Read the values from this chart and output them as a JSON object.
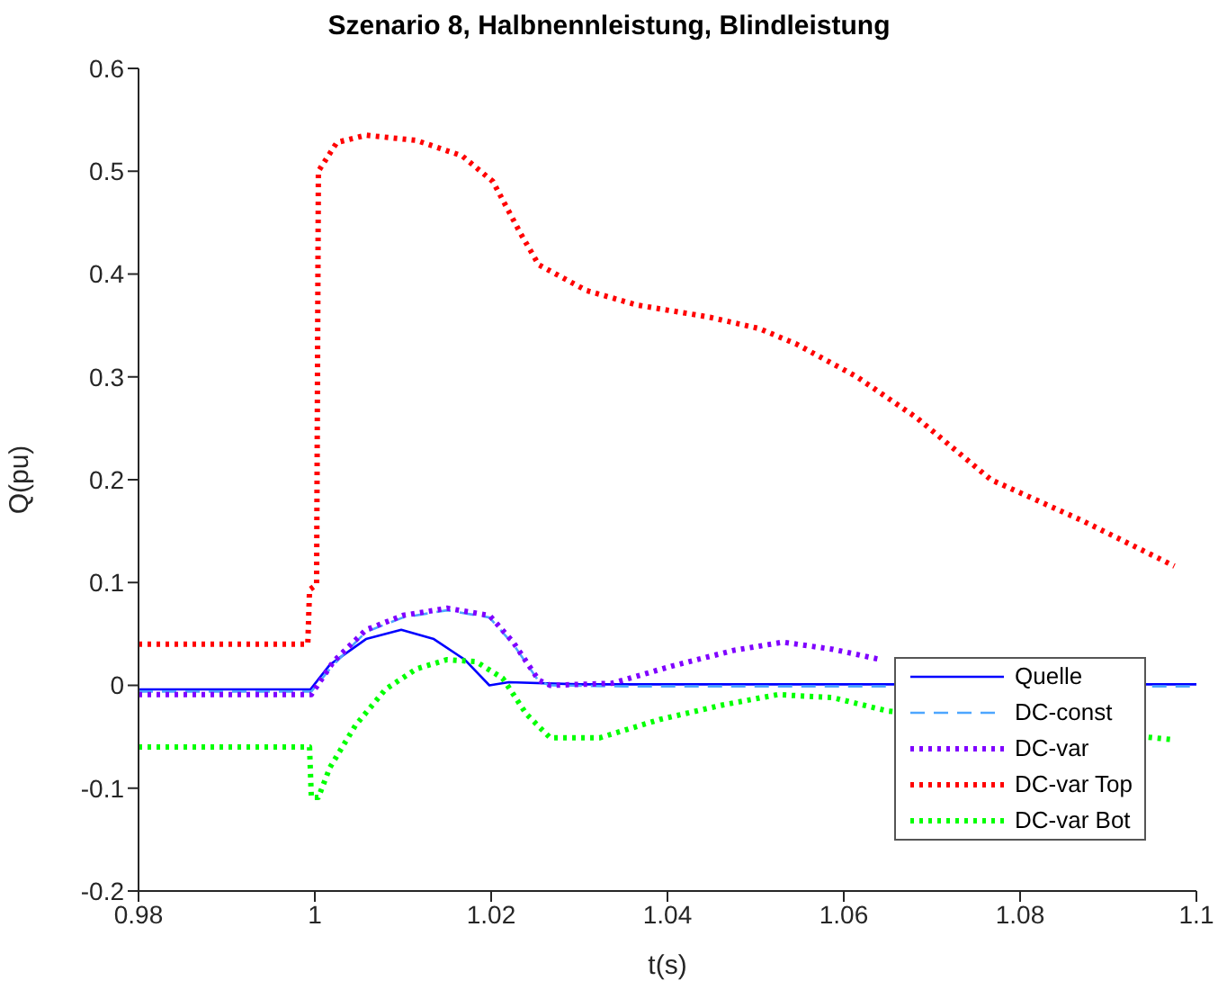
{
  "chart_data": {
    "type": "line",
    "title": "Szenario 8, Halbnennleistung, Blindleistung",
    "xlabel": "t(s)",
    "ylabel": "Q(pu)",
    "xlim": [
      0.98,
      1.1
    ],
    "xticks": [
      0.98,
      1,
      1.02,
      1.04,
      1.06,
      1.08,
      1.1
    ],
    "ylim": [
      -0.2,
      0.6
    ],
    "yticks": [
      -0.2,
      -0.1,
      0,
      0.1,
      0.2,
      0.3,
      0.4,
      0.5,
      0.6
    ],
    "legend": "bottom right",
    "series": [
      {
        "name": "Quelle",
        "color": "#0000ff",
        "line_style": "solid",
        "x": [
          0.98,
          0.9995,
          1.0017,
          1.0058,
          1.0098,
          1.0135,
          1.017,
          1.0198,
          1.022,
          1.03,
          1.1
        ],
        "values": [
          -0.004,
          -0.004,
          0.02,
          0.045,
          0.054,
          0.045,
          0.025,
          0.0,
          0.003,
          0.001,
          0.001
        ]
      },
      {
        "name": "DC-const",
        "color": "#4da6ff",
        "line_style": "dashed",
        "x": [
          0.98,
          0.9996,
          1.0021,
          1.0058,
          1.01,
          1.015,
          1.0198,
          1.0225,
          1.0254,
          1.0267,
          1.035,
          1.1
        ],
        "values": [
          -0.006,
          -0.006,
          0.02,
          0.052,
          0.066,
          0.073,
          0.066,
          0.04,
          0.004,
          0.0,
          -0.001,
          -0.001
        ]
      },
      {
        "name": "DC-var",
        "color": "#7f00ff",
        "line_style": "dotted",
        "x": [
          0.98,
          0.9996,
          1.0021,
          1.0058,
          1.01,
          1.015,
          1.0198,
          1.0225,
          1.0254,
          1.0267,
          1.0337,
          1.0406,
          1.0475,
          1.0531,
          1.0588,
          1.0642
        ],
        "values": [
          -0.009,
          -0.009,
          0.023,
          0.054,
          0.068,
          0.075,
          0.068,
          0.042,
          0.005,
          0.0,
          0.002,
          0.019,
          0.034,
          0.042,
          0.035,
          0.025
        ]
      },
      {
        "name": "DC-var Top",
        "color": "#ff0000",
        "line_style": "dotted",
        "x": [
          0.98,
          0.9992,
          0.9994,
          1.0002,
          1.0004,
          1.0025,
          1.0058,
          1.0115,
          1.0167,
          1.0202,
          1.0233,
          1.0254,
          1.0308,
          1.0365,
          1.0448,
          1.0504,
          1.0546,
          1.0615,
          1.0683,
          1.0767,
          1.0871,
          1.0975
        ],
        "values": [
          0.04,
          0.04,
          0.093,
          0.098,
          0.5,
          0.528,
          0.535,
          0.53,
          0.515,
          0.49,
          0.44,
          0.409,
          0.384,
          0.37,
          0.358,
          0.347,
          0.332,
          0.3,
          0.26,
          0.2,
          0.16,
          0.116
        ]
      },
      {
        "name": "DC-var Bot",
        "color": "#00ff00",
        "line_style": "dotted",
        "x": [
          0.98,
          0.9994,
          0.9996,
          1.0004,
          1.0017,
          1.0046,
          1.008,
          1.0115,
          1.015,
          1.0183,
          1.0213,
          1.024,
          1.0267,
          1.0323,
          1.0392,
          1.0463,
          1.0525,
          1.0588,
          1.065,
          1.0975
        ],
        "values": [
          -0.06,
          -0.06,
          -0.109,
          -0.109,
          -0.08,
          -0.039,
          -0.004,
          0.016,
          0.025,
          0.023,
          0.007,
          -0.028,
          -0.051,
          -0.051,
          -0.033,
          -0.019,
          -0.009,
          -0.012,
          -0.025,
          -0.053
        ]
      }
    ]
  }
}
